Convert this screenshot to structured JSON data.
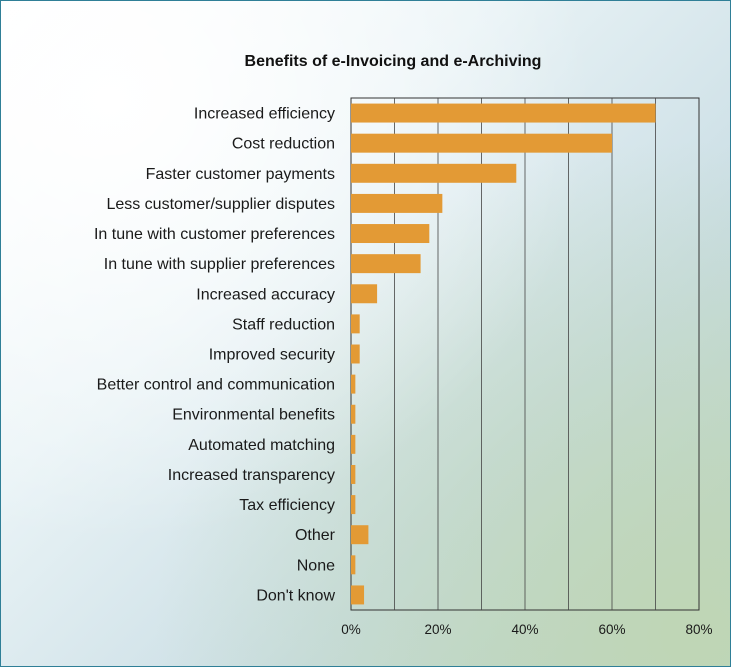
{
  "chart_data": {
    "type": "bar",
    "orientation": "horizontal",
    "title": "Benefits of e-Invoicing and e-Archiving",
    "xlabel": "",
    "ylabel": "",
    "categories": [
      "Increased efficiency",
      "Cost reduction",
      "Faster customer payments",
      "Less customer/supplier disputes",
      "In tune with customer preferences",
      "In tune with supplier preferences",
      "Increased accuracy",
      "Staff reduction",
      "Improved security",
      "Better control and communication",
      "Environmental benefits",
      "Automated matching",
      "Increased transparency",
      "Tax efficiency",
      "Other",
      "None",
      "Don't know"
    ],
    "values": [
      70,
      60,
      38,
      21,
      18,
      16,
      6,
      2,
      2,
      1,
      1,
      1,
      1,
      1,
      4,
      1,
      3
    ],
    "xlim": [
      0,
      80
    ],
    "xticks": [
      0,
      20,
      40,
      60,
      80
    ],
    "xtick_labels": [
      "0%",
      "20%",
      "40%",
      "60%",
      "80%"
    ],
    "grid": "vertical",
    "bar_color": "#e39a35",
    "legend": "none"
  }
}
